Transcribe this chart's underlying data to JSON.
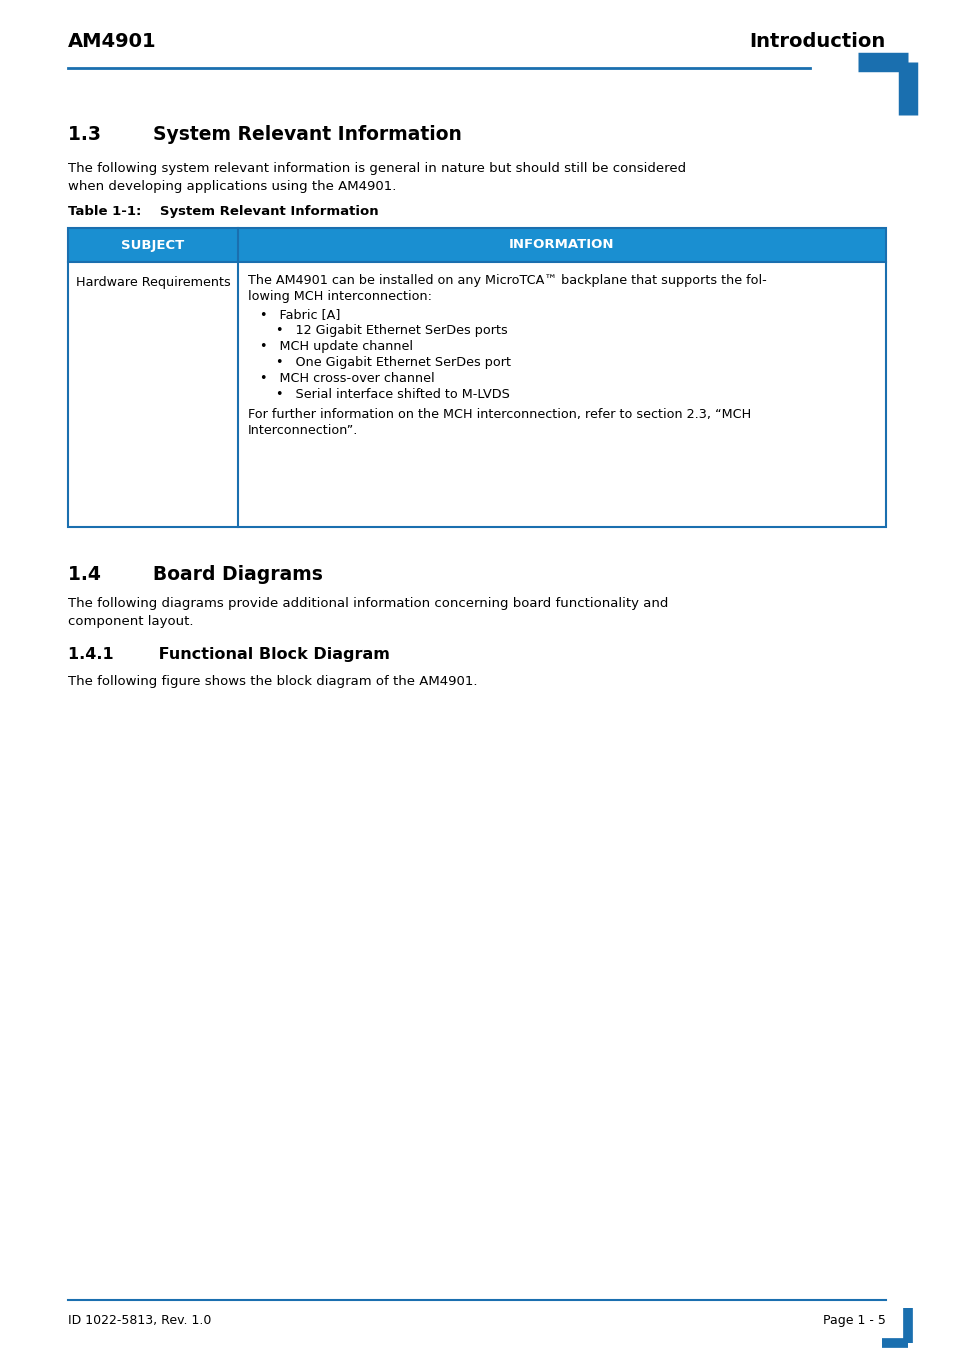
{
  "header_left": "AM4901",
  "header_right": "Introduction",
  "header_line_color": "#1a6faf",
  "corner_bracket_color": "#1a6faf",
  "section_1_3_title": "1.3        System Relevant Information",
  "section_1_3_body1": "The following system relevant information is general in nature but should still be considered",
  "section_1_3_body2": "when developing applications using the AM4901.",
  "table_title": "Table 1-1:    System Relevant Information",
  "table_header_bg": "#1a8fd1",
  "table_header_text_color": "#ffffff",
  "table_border_color": "#1a6faf",
  "table_col1_header": "SUBJECT",
  "table_col2_header": "INFORMATION",
  "table_col1_content": "Hardware Requirements",
  "table_col2_line1": "The AM4901 can be installed on any MicroTCA™ backplane that supports the fol-",
  "table_col2_line2": "lowing MCH interconnection:",
  "table_col2_bullet1": "•   Fabric [A]",
  "table_col2_sub_bullet1": "•   12 Gigabit Ethernet SerDes ports",
  "table_col2_bullet2": "•   MCH update channel",
  "table_col2_sub_bullet2": "•   One Gigabit Ethernet SerDes port",
  "table_col2_bullet3": "•   MCH cross-over channel",
  "table_col2_sub_bullet3": "•   Serial interface shifted to M-LVDS",
  "table_col2_footer1": "For further information on the MCH interconnection, refer to section 2.3, “MCH",
  "table_col2_footer2": "Interconnection”.",
  "section_1_4_title": "1.4        Board Diagrams",
  "section_1_4_body1": "The following diagrams provide additional information concerning board functionality and",
  "section_1_4_body2": "component layout.",
  "section_1_4_1_title": "1.4.1        Functional Block Diagram",
  "section_1_4_1_body": "The following figure shows the block diagram of the AM4901.",
  "footer_left": "ID 1022-5813, Rev. 1.0",
  "footer_right": "Page 1 - 5",
  "footer_line_color": "#1a6faf",
  "bg_color": "#ffffff",
  "text_color": "#000000",
  "body_font_size": 9.5,
  "header_font_size": 14,
  "section_font_size": 13.5,
  "subsection_font_size": 11.5,
  "table_header_font_size": 9.5,
  "table_body_font_size": 9.2,
  "footer_font_size": 9.0
}
